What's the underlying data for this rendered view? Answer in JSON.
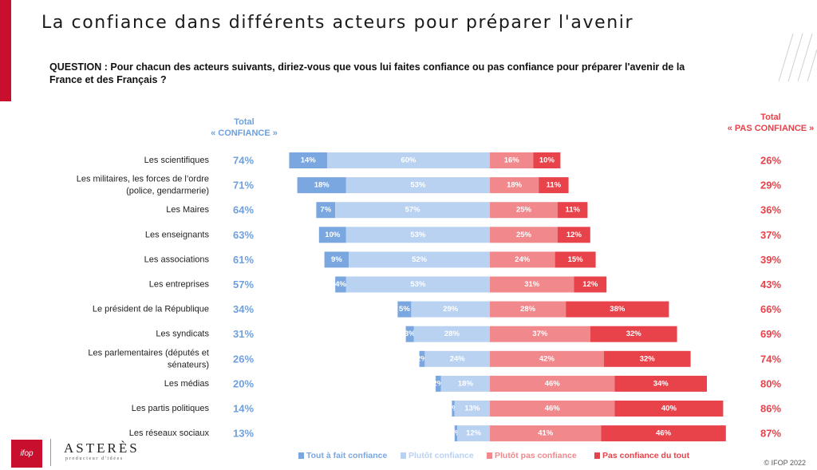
{
  "title": "La confiance dans différents acteurs pour préparer l'avenir",
  "question": "QUESTION : Pour chacun des acteurs suivants, diriez-vous que vous lui faites confiance ou pas confiance pour préparer l'avenir de la France et des Français ?",
  "total_confiance_header": [
    "Total",
    "« CONFIANCE »"
  ],
  "total_pas_confiance_header": [
    "Total",
    "« PAS CONFIANCE »"
  ],
  "footer": "© IFOP 2022",
  "logos": {
    "ifop": "ifop",
    "asteres": "ASTERÈS",
    "asteres_tagline": "producteur d'idées"
  },
  "colors": {
    "tout_a_fait": "#7aa7e0",
    "plutot_confiance": "#b9d2f2",
    "plutot_pas": "#f0888c",
    "pas_du_tout": "#e8424a",
    "total_blue": "#6fa0dc",
    "total_red": "#e8424a"
  },
  "chart_data": {
    "type": "bar",
    "orientation": "horizontal-diverging-stacked",
    "categories": [
      "Les scientifiques",
      "Les militaires, les forces de l’ordre (police, gendarmerie)",
      "Les Maires",
      "Les enseignants",
      "Les associations",
      "Les entreprises",
      "Le président de la République",
      "Les syndicats",
      "Les parlementaires (députés et sénateurs)",
      "Les médias",
      "Les partis politiques",
      "Les réseaux sociaux"
    ],
    "series": [
      {
        "name": "Tout à fait confiance",
        "values": [
          14,
          18,
          7,
          10,
          9,
          4,
          5,
          3,
          2,
          2,
          1,
          1
        ]
      },
      {
        "name": "Plutôt confiance",
        "values": [
          60,
          53,
          57,
          53,
          52,
          53,
          29,
          28,
          24,
          18,
          13,
          12
        ]
      },
      {
        "name": "Plutôt pas confiance",
        "values": [
          16,
          18,
          25,
          25,
          24,
          31,
          28,
          37,
          42,
          46,
          46,
          41
        ]
      },
      {
        "name": "Pas confiance du tout",
        "values": [
          10,
          11,
          11,
          12,
          15,
          12,
          38,
          32,
          32,
          34,
          40,
          46
        ]
      }
    ],
    "total_confiance": [
      74,
      71,
      64,
      63,
      61,
      57,
      34,
      31,
      26,
      20,
      14,
      13
    ],
    "total_pas_confiance": [
      26,
      29,
      36,
      37,
      39,
      43,
      66,
      69,
      74,
      80,
      86,
      87
    ],
    "value_suffix": "%",
    "legend_position": "bottom"
  }
}
